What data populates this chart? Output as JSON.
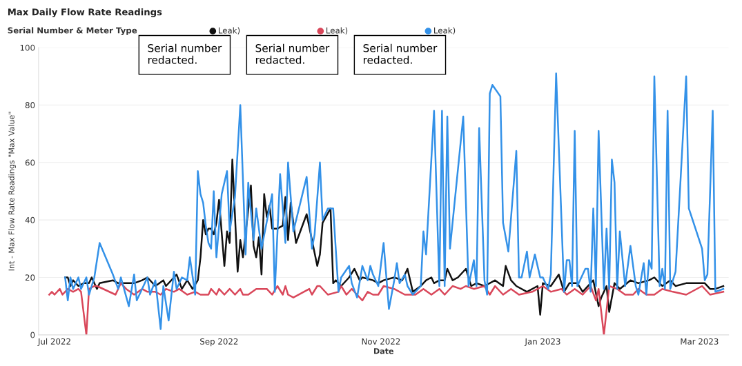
{
  "chart_data": {
    "type": "line",
    "title": "Max Daily Flow Rate Readings",
    "xlabel": "Date",
    "ylabel": "Int - Max Flow Rate Readings \"Max Value\"",
    "legend_title": "Serial Number & Meter Type",
    "annotations": [
      "Serial number redacted.",
      "Serial number redacted.",
      "Serial number redacted."
    ],
    "xlim": [
      "2022-06-25",
      "2023-03-12"
    ],
    "xticks": [
      {
        "value": "2022-07-01",
        "label": "Jul 2022"
      },
      {
        "value": "2022-09-01",
        "label": "Sep 2022"
      },
      {
        "value": "2022-11-01",
        "label": "Nov 2022"
      },
      {
        "value": "2023-01-01",
        "label": "Jan 2023"
      },
      {
        "value": "2023-03-01",
        "label": "Mar 2023"
      }
    ],
    "ylim": [
      0,
      100
    ],
    "yticks": [
      0,
      20,
      40,
      60,
      80,
      100
    ],
    "grid": "y",
    "legend": "top",
    "marker": "none",
    "line_style": "solid",
    "series": [
      {
        "name": "Leak)",
        "color": "#111111",
        "x": [
          "2022-07-05",
          "2022-07-06",
          "2022-07-07",
          "2022-07-08",
          "2022-07-10",
          "2022-07-12",
          "2022-07-14",
          "2022-07-15",
          "2022-07-17",
          "2022-07-18",
          "2022-07-23",
          "2022-07-25",
          "2022-07-31",
          "2022-08-03",
          "2022-08-05",
          "2022-08-08",
          "2022-08-11",
          "2022-08-12",
          "2022-08-16",
          "2022-08-18",
          "2022-08-20",
          "2022-08-22",
          "2022-08-24",
          "2022-08-25",
          "2022-08-26",
          "2022-08-27",
          "2022-08-28",
          "2022-08-29",
          "2022-08-30",
          "2022-08-31",
          "2022-09-01",
          "2022-09-03",
          "2022-09-04",
          "2022-09-05",
          "2022-09-06",
          "2022-09-08",
          "2022-09-09",
          "2022-09-10",
          "2022-09-13",
          "2022-09-14",
          "2022-09-15",
          "2022-09-16",
          "2022-09-17",
          "2022-09-18",
          "2022-09-19",
          "2022-09-20",
          "2022-09-21",
          "2022-09-23",
          "2022-09-25",
          "2022-09-26",
          "2022-09-27",
          "2022-09-28",
          "2022-09-30",
          "2022-10-04",
          "2022-10-08",
          "2022-10-09",
          "2022-10-10",
          "2022-10-13",
          "2022-10-14",
          "2022-10-15",
          "2022-10-17",
          "2022-10-20",
          "2022-10-22",
          "2022-10-24",
          "2022-10-25",
          "2022-10-29",
          "2022-10-31",
          "2022-11-02",
          "2022-11-06",
          "2022-11-09",
          "2022-11-11",
          "2022-11-13",
          "2022-11-16",
          "2022-11-18",
          "2022-11-20",
          "2022-11-21",
          "2022-11-23",
          "2022-11-25",
          "2022-11-26",
          "2022-11-28",
          "2022-11-30",
          "2022-12-03",
          "2022-12-05",
          "2022-12-07",
          "2022-12-10",
          "2022-12-14",
          "2022-12-17",
          "2022-12-18",
          "2022-12-20",
          "2022-12-22",
          "2022-12-26",
          "2022-12-30",
          "2022-12-31",
          "2023-01-01",
          "2023-01-04",
          "2023-01-07",
          "2023-01-09",
          "2023-01-11",
          "2023-01-14",
          "2023-01-16",
          "2023-01-20",
          "2023-01-22",
          "2023-01-23",
          "2023-01-25",
          "2023-01-26",
          "2023-01-28",
          "2023-01-30",
          "2023-02-03",
          "2023-02-06",
          "2023-02-10",
          "2023-02-12",
          "2023-02-15",
          "2023-02-18",
          "2023-02-20",
          "2023-02-24",
          "2023-03-03",
          "2023-03-05",
          "2023-03-07",
          "2023-03-10"
        ],
        "values": [
          20,
          20,
          17,
          19,
          17,
          18,
          18,
          20,
          16,
          18,
          19,
          18,
          18,
          19,
          20,
          17,
          19,
          17,
          21,
          16,
          19,
          16,
          19,
          27,
          40,
          35,
          37,
          37,
          35,
          39,
          47,
          24,
          36,
          32,
          61,
          22,
          33,
          27,
          52,
          31,
          27,
          34,
          21,
          49,
          41,
          45,
          37,
          37,
          38,
          48,
          33,
          46,
          32,
          42,
          24,
          28,
          39,
          44,
          18,
          19,
          17,
          20,
          23,
          19,
          20,
          19,
          18,
          19,
          20,
          19,
          23,
          15,
          17,
          19,
          20,
          18,
          19,
          19,
          23,
          19,
          20,
          23,
          17,
          18,
          17,
          19,
          17,
          24,
          19,
          17,
          15,
          17,
          7,
          18,
          17,
          21,
          15,
          18,
          18,
          15,
          19,
          10,
          13,
          17,
          8,
          18,
          16,
          19,
          18,
          19,
          20,
          17,
          19,
          17,
          18,
          18,
          16,
          16,
          17
        ]
      },
      {
        "name": "Leak)",
        "color": "#d9475a",
        "x": [
          "2022-06-29",
          "2022-06-30",
          "2022-07-01",
          "2022-07-03",
          "2022-07-04",
          "2022-07-06",
          "2022-07-08",
          "2022-07-10",
          "2022-07-11",
          "2022-07-13",
          "2022-07-14",
          "2022-07-16",
          "2022-07-17",
          "2022-07-24",
          "2022-07-26",
          "2022-07-28",
          "2022-07-31",
          "2022-08-03",
          "2022-08-05",
          "2022-08-08",
          "2022-08-10",
          "2022-08-12",
          "2022-08-15",
          "2022-08-17",
          "2022-08-20",
          "2022-08-23",
          "2022-08-25",
          "2022-08-28",
          "2022-08-29",
          "2022-08-31",
          "2022-09-01",
          "2022-09-03",
          "2022-09-05",
          "2022-09-07",
          "2022-09-09",
          "2022-09-10",
          "2022-09-12",
          "2022-09-15",
          "2022-09-19",
          "2022-09-21",
          "2022-09-23",
          "2022-09-25",
          "2022-09-26",
          "2022-09-27",
          "2022-09-29",
          "2022-10-05",
          "2022-10-06",
          "2022-10-08",
          "2022-10-09",
          "2022-10-12",
          "2022-10-16",
          "2022-10-17",
          "2022-10-19",
          "2022-10-21",
          "2022-10-23",
          "2022-10-25",
          "2022-10-27",
          "2022-10-29",
          "2022-10-31",
          "2022-11-02",
          "2022-11-06",
          "2022-11-10",
          "2022-11-14",
          "2022-11-17",
          "2022-11-20",
          "2022-11-23",
          "2022-11-25",
          "2022-11-28",
          "2022-12-01",
          "2022-12-03",
          "2022-12-06",
          "2022-12-10",
          "2022-12-12",
          "2022-12-14",
          "2022-12-17",
          "2022-12-20",
          "2022-12-23",
          "2022-12-28",
          "2023-01-01",
          "2023-01-04",
          "2023-01-08",
          "2023-01-10",
          "2023-01-13",
          "2023-01-16",
          "2023-01-19",
          "2023-01-21",
          "2023-01-22",
          "2023-01-24",
          "2023-01-26",
          "2023-01-29",
          "2023-02-01",
          "2023-02-04",
          "2023-02-06",
          "2023-02-09",
          "2023-02-12",
          "2023-02-15",
          "2023-02-19",
          "2023-02-24",
          "2023-03-02",
          "2023-03-05",
          "2023-03-10"
        ],
        "values": [
          14,
          15,
          14,
          16,
          14,
          16,
          15,
          16,
          15,
          0,
          16,
          17,
          17,
          14,
          18,
          16,
          14,
          16,
          15,
          15,
          14,
          16,
          15,
          16,
          14,
          15,
          14,
          14,
          16,
          14,
          16,
          14,
          16,
          14,
          16,
          14,
          14,
          16,
          16,
          14,
          17,
          14,
          17,
          14,
          13,
          16,
          14,
          17,
          17,
          14,
          15,
          17,
          14,
          16,
          14,
          12,
          15,
          14,
          14,
          17,
          16,
          14,
          14,
          16,
          14,
          16,
          14,
          17,
          16,
          17,
          16,
          17,
          14,
          17,
          14,
          16,
          14,
          15,
          17,
          15,
          16,
          14,
          16,
          14,
          17,
          12,
          16,
          0,
          17,
          16,
          14,
          14,
          16,
          14,
          14,
          16,
          15,
          14,
          17,
          14,
          15
        ]
      },
      {
        "name": "Leak)",
        "color": "#3391e8",
        "x": [
          "2022-07-05",
          "2022-07-06",
          "2022-07-07",
          "2022-07-08",
          "2022-07-10",
          "2022-07-11",
          "2022-07-13",
          "2022-07-14",
          "2022-07-16",
          "2022-07-18",
          "2022-07-23",
          "2022-07-25",
          "2022-07-26",
          "2022-07-29",
          "2022-07-31",
          "2022-08-01",
          "2022-08-03",
          "2022-08-05",
          "2022-08-06",
          "2022-08-08",
          "2022-08-10",
          "2022-08-11",
          "2022-08-13",
          "2022-08-15",
          "2022-08-16",
          "2022-08-18",
          "2022-08-20",
          "2022-08-21",
          "2022-08-23",
          "2022-08-24",
          "2022-08-25",
          "2022-08-26",
          "2022-08-27",
          "2022-08-28",
          "2022-08-29",
          "2022-08-30",
          "2022-08-31",
          "2022-09-02",
          "2022-09-04",
          "2022-09-05",
          "2022-09-07",
          "2022-09-09",
          "2022-09-11",
          "2022-09-12",
          "2022-09-14",
          "2022-09-15",
          "2022-09-17",
          "2022-09-21",
          "2022-09-22",
          "2022-09-24",
          "2022-09-26",
          "2022-09-27",
          "2022-09-29",
          "2022-10-04",
          "2022-10-06",
          "2022-10-07",
          "2022-10-09",
          "2022-10-10",
          "2022-10-12",
          "2022-10-14",
          "2022-10-16",
          "2022-10-17",
          "2022-10-20",
          "2022-10-21",
          "2022-10-23",
          "2022-10-25",
          "2022-10-27",
          "2022-10-28",
          "2022-10-29",
          "2022-10-31",
          "2022-11-02",
          "2022-11-04",
          "2022-11-06",
          "2022-11-07",
          "2022-11-08",
          "2022-11-10",
          "2022-11-11",
          "2022-11-13",
          "2022-11-16",
          "2022-11-17",
          "2022-11-18",
          "2022-11-21",
          "2022-11-23",
          "2022-11-24",
          "2022-11-25",
          "2022-11-26",
          "2022-11-27",
          "2022-12-02",
          "2022-12-04",
          "2022-12-06",
          "2022-12-07",
          "2022-12-08",
          "2022-12-10",
          "2022-12-11",
          "2022-12-12",
          "2022-12-13",
          "2022-12-16",
          "2022-12-17",
          "2022-12-19",
          "2022-12-22",
          "2022-12-23",
          "2022-12-24",
          "2022-12-26",
          "2022-12-27",
          "2022-12-29",
          "2022-12-31",
          "2023-01-01",
          "2023-01-03",
          "2023-01-04",
          "2023-01-06",
          "2023-01-09",
          "2023-01-10",
          "2023-01-11",
          "2023-01-12",
          "2023-01-13",
          "2023-01-14",
          "2023-01-17",
          "2023-01-18",
          "2023-01-19",
          "2023-01-20",
          "2023-01-21",
          "2023-01-22",
          "2023-01-24",
          "2023-01-25",
          "2023-01-26",
          "2023-01-27",
          "2023-01-28",
          "2023-01-29",
          "2023-01-30",
          "2023-02-01",
          "2023-02-03",
          "2023-02-05",
          "2023-02-06",
          "2023-02-08",
          "2023-02-09",
          "2023-02-10",
          "2023-02-11",
          "2023-02-12",
          "2023-02-14",
          "2023-02-15",
          "2023-02-16",
          "2023-02-17",
          "2023-02-18",
          "2023-02-20",
          "2023-02-24",
          "2023-02-25",
          "2023-03-02",
          "2023-03-03",
          "2023-03-04",
          "2023-03-06",
          "2023-03-07",
          "2023-03-10"
        ],
        "values": [
          20,
          12,
          20,
          16,
          20,
          16,
          20,
          14,
          20,
          32,
          21,
          16,
          20,
          10,
          21,
          12,
          16,
          20,
          14,
          19,
          2,
          17,
          5,
          22,
          16,
          20,
          19,
          27,
          14,
          57,
          49,
          46,
          38,
          32,
          30,
          50,
          27,
          49,
          57,
          36,
          48,
          80,
          28,
          53,
          33,
          44,
          30,
          49,
          15,
          56,
          32,
          60,
          36,
          55,
          30,
          35,
          60,
          40,
          44,
          44,
          15,
          20,
          24,
          18,
          13,
          24,
          19,
          24,
          21,
          17,
          32,
          9,
          19,
          25,
          18,
          21,
          17,
          14,
          17,
          36,
          28,
          78,
          17,
          78,
          17,
          76,
          30,
          76,
          17,
          26,
          17,
          72,
          19,
          14,
          84,
          87,
          83,
          39,
          29,
          64,
          20,
          20,
          29,
          20,
          28,
          20,
          20,
          16,
          21,
          91,
          15,
          26,
          26,
          17,
          71,
          17,
          23,
          23,
          15,
          44,
          17,
          71,
          16,
          37,
          16,
          61,
          53,
          16,
          36,
          17,
          31,
          17,
          14,
          25,
          14,
          26,
          23,
          90,
          17,
          23,
          16,
          78,
          16,
          22,
          90,
          44,
          30,
          19,
          21,
          78,
          15,
          16
        ]
      }
    ]
  }
}
